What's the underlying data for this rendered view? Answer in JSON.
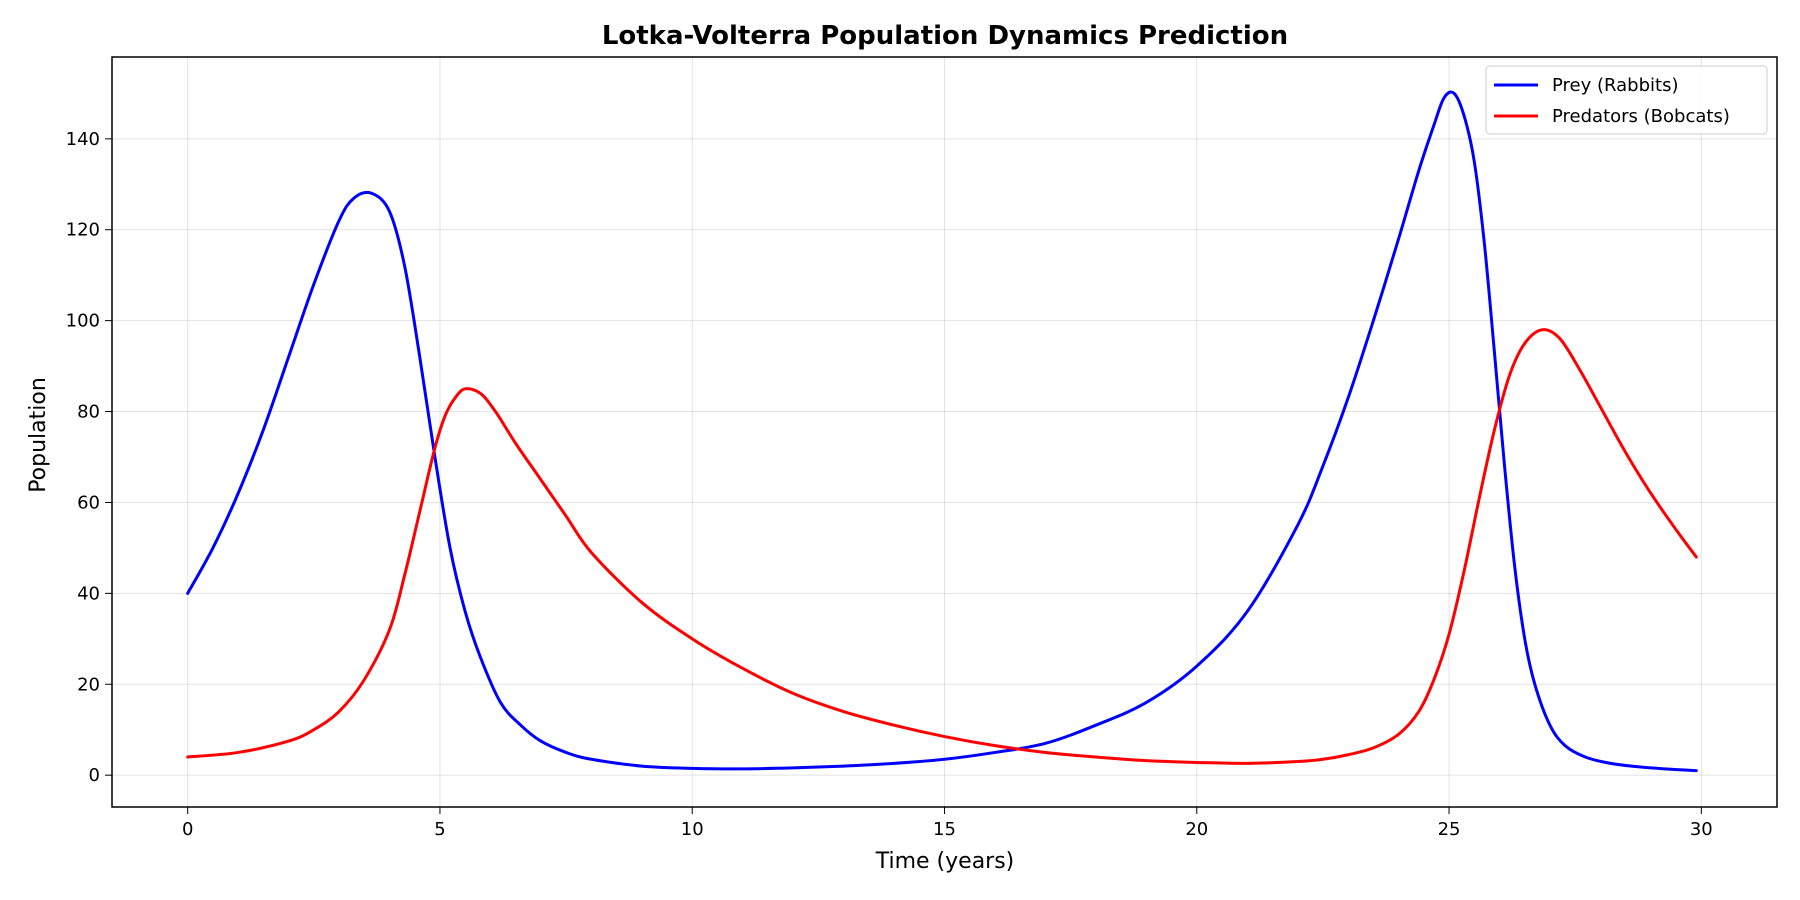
{
  "chart_data": {
    "type": "line",
    "title": "Lotka-Volterra Population Dynamics Prediction",
    "xlabel": "Time (years)",
    "ylabel": "Population",
    "xlim": [
      -1.5,
      31.5
    ],
    "ylim": [
      -7,
      158
    ],
    "xticks": [
      0,
      5,
      10,
      15,
      20,
      25,
      30
    ],
    "yticks": [
      0,
      20,
      40,
      60,
      80,
      100,
      120,
      140
    ],
    "grid": true,
    "legend_position": "top-right",
    "series": [
      {
        "name": "Prey (Rabbits)",
        "color": "#0000ff",
        "x": [
          0,
          0.5,
          1,
          1.5,
          2,
          2.5,
          3,
          3.3,
          3.65,
          4,
          4.3,
          4.6,
          4.9,
          5.2,
          5.5,
          5.8,
          6.2,
          6.6,
          7,
          7.5,
          8,
          9,
          10,
          11,
          12,
          13,
          14,
          15,
          16,
          17,
          18,
          19,
          20,
          21,
          22,
          22.5,
          23,
          23.5,
          24,
          24.4,
          24.7,
          24.9,
          25.1,
          25.3,
          25.5,
          25.7,
          25.9,
          26.1,
          26.3,
          26.5,
          26.7,
          27,
          27.3,
          27.7,
          28.2,
          28.8,
          29.4,
          29.9
        ],
        "y": [
          40,
          50,
          62,
          76,
          92,
          108,
          122,
          127,
          128,
          124,
          112,
          92,
          70,
          50,
          36,
          26,
          16,
          11,
          7.5,
          5,
          3.5,
          2,
          1.5,
          1.4,
          1.6,
          2,
          2.6,
          3.5,
          5,
          7,
          11,
          16,
          24,
          36,
          55,
          68,
          83,
          100,
          118,
          133,
          143,
          149,
          150,
          145,
          135,
          117,
          93,
          68,
          46,
          30,
          20,
          11,
          6.5,
          4,
          2.6,
          1.8,
          1.3,
          1
        ],
        "line_width": 3
      },
      {
        "name": "Predators (Bobcats)",
        "color": "#ff0000",
        "x": [
          0,
          1,
          2,
          2.5,
          3,
          3.5,
          4,
          4.3,
          4.6,
          4.9,
          5.1,
          5.3,
          5.5,
          5.8,
          6.1,
          6.5,
          7,
          7.5,
          8,
          9,
          10,
          11,
          12,
          13,
          14,
          15,
          16,
          17,
          18,
          19,
          20,
          21,
          22,
          22.5,
          23,
          23.5,
          24,
          24.4,
          24.7,
          25,
          25.3,
          25.6,
          25.9,
          26.2,
          26.5,
          26.85,
          27.2,
          27.6,
          28,
          28.5,
          29,
          29.5,
          29.9
        ],
        "y": [
          4,
          5,
          7.5,
          10,
          14,
          21,
          32,
          44,
          58,
          72,
          79,
          83,
          85,
          84,
          80,
          73,
          65,
          57,
          49,
          38,
          30,
          23.5,
          18,
          14,
          11,
          8.5,
          6.5,
          5,
          4,
          3.2,
          2.8,
          2.6,
          3,
          3.5,
          4.5,
          6,
          9,
          14,
          21,
          31,
          45,
          61,
          76,
          88,
          95,
          98,
          96,
          89,
          81,
          71,
          62,
          54,
          48
        ],
        "line_width": 3
      }
    ]
  }
}
